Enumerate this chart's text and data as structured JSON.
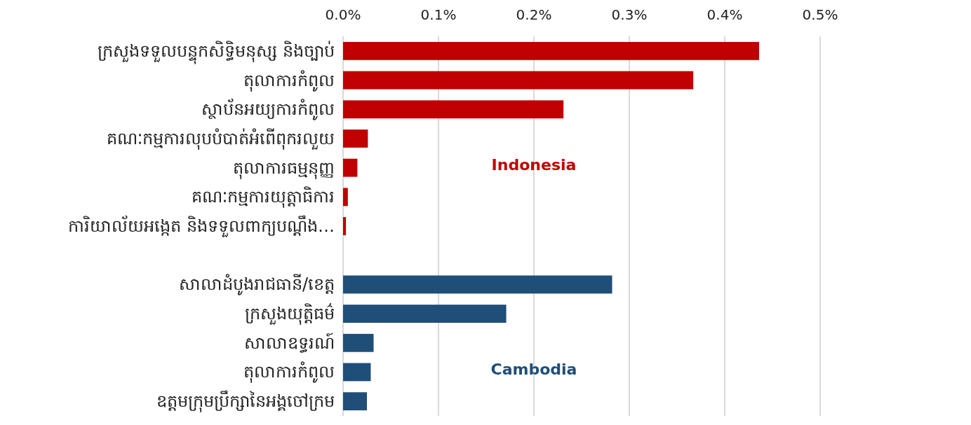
{
  "chart_data": {
    "type": "bar",
    "orientation": "horizontal",
    "categories": [
      "ក្រសួងទទួលបន្ទុកសិទ្ធិមនុស្ស និងច្បាប់",
      "តុលាការកំពូល",
      "ស្ថាប័នអយ្យការកំពូល",
      "គណៈកម្មការលុបបំបាត់អំពើពុករលួយ",
      "តុលាការធម្មនុញ្ញ",
      "គណៈកម្មការយុត្តាធិការ",
      "ការិយាល័យអង្កេត និងទទួលពាក្យបណ្ដឹង…",
      null,
      "សាលាដំបូងរាជធានី/ខេត្ត",
      "ក្រសួងយុត្តិធម៌",
      "សាលាឧទ្ធរណ៍",
      "តុលាការកំពូល",
      "ឧត្តមក្រុមប្រឹក្សានៃអង្គចៅក្រម"
    ],
    "series": [
      {
        "name": "Indonesia",
        "color": "#c00000",
        "values": [
          0.436,
          0.367,
          0.231,
          0.026,
          0.015,
          0.005,
          0.003,
          null,
          null,
          null,
          null,
          null,
          null
        ]
      },
      {
        "name": "Cambodia",
        "color": "#1f4e79",
        "values": [
          null,
          null,
          null,
          null,
          null,
          null,
          null,
          null,
          0.282,
          0.171,
          0.032,
          0.029,
          0.025
        ]
      }
    ],
    "xlim": [
      0,
      0.5
    ],
    "xticks": [
      {
        "value": 0,
        "label": "0.0%"
      },
      {
        "value": 0.1,
        "label": "0.1%"
      },
      {
        "value": 0.2,
        "label": "0.2%"
      },
      {
        "value": 0.3,
        "label": "0.3%"
      },
      {
        "value": 0.4,
        "label": "0.4%"
      },
      {
        "value": 0.5,
        "label": "0.5%"
      }
    ],
    "grid": "x"
  }
}
